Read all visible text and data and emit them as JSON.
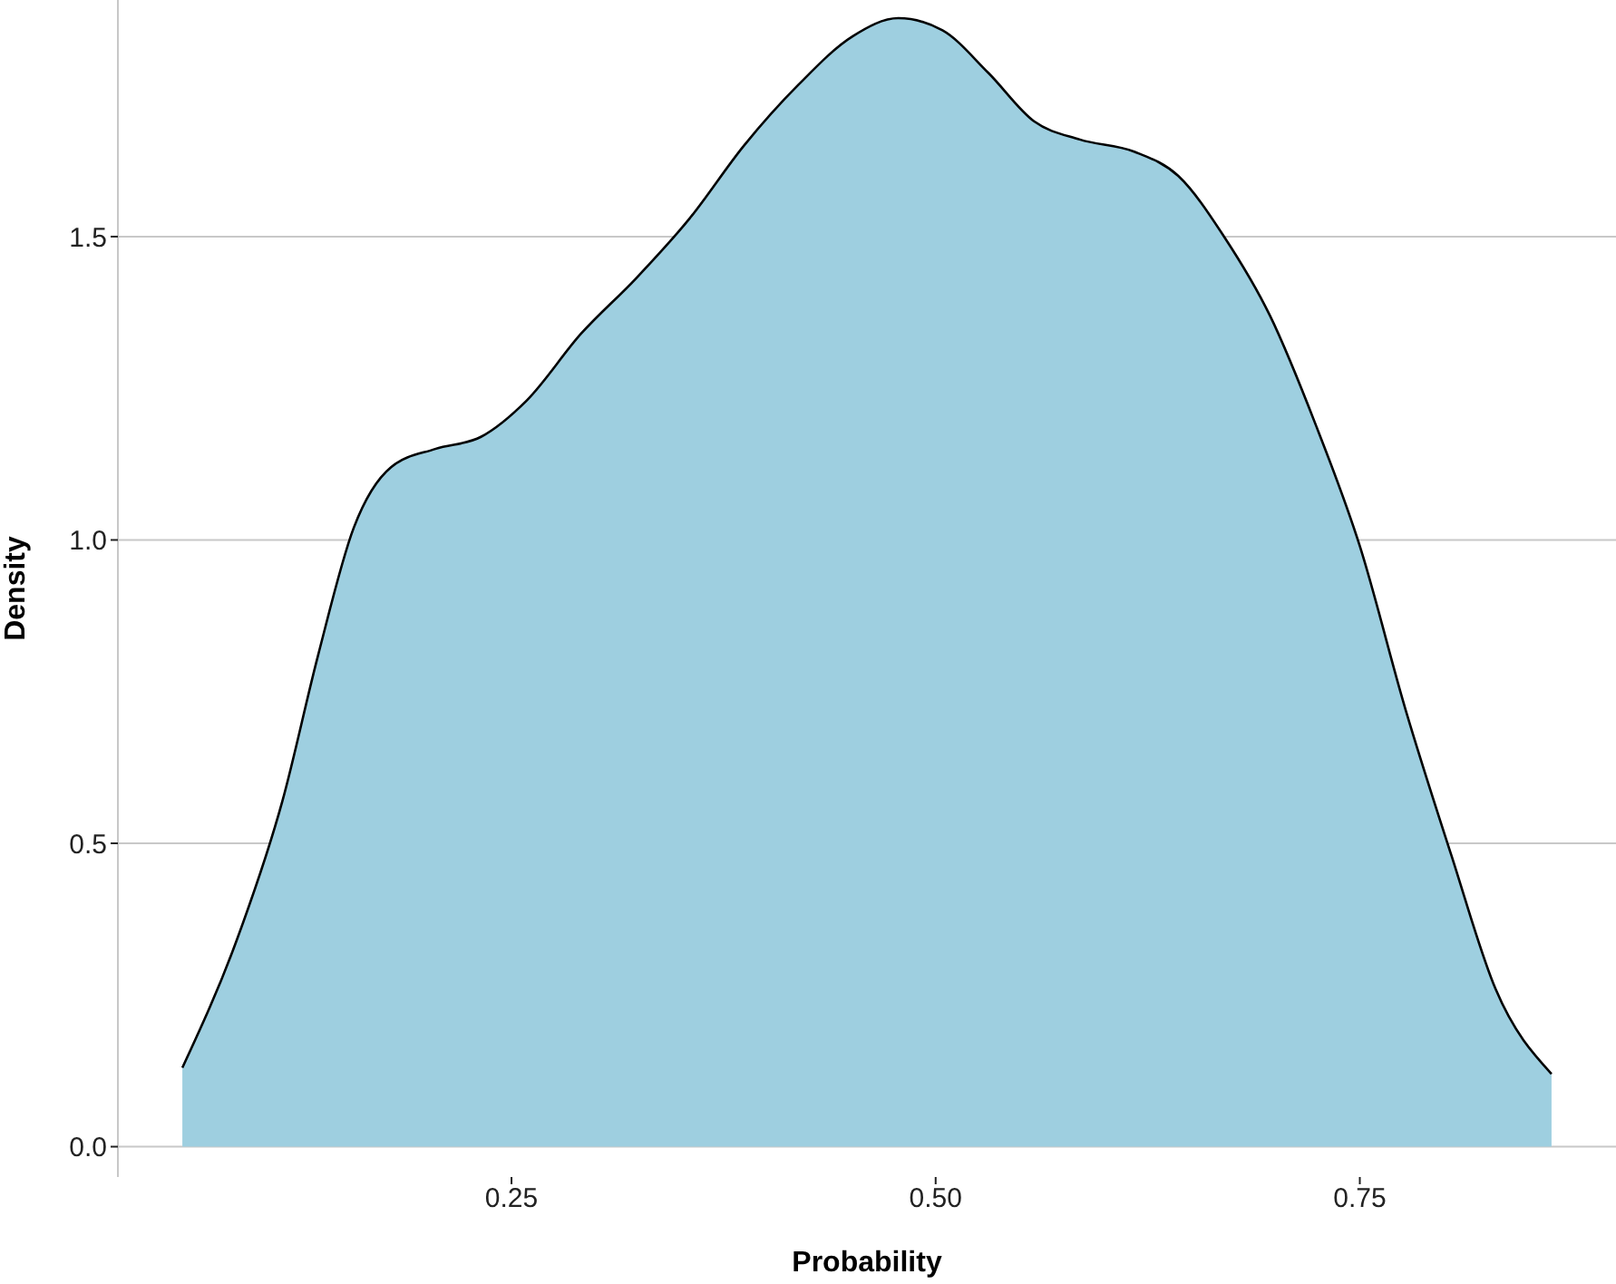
{
  "chart_data": {
    "type": "area",
    "xlabel": "Probability",
    "ylabel": "Density",
    "color": "#9ecfe0",
    "x": [
      0.056,
      0.088,
      0.115,
      0.136,
      0.157,
      0.179,
      0.205,
      0.232,
      0.259,
      0.291,
      0.323,
      0.355,
      0.387,
      0.419,
      0.451,
      0.478,
      0.504,
      0.531,
      0.558,
      0.585,
      0.617,
      0.643,
      0.67,
      0.697,
      0.724,
      0.75,
      0.777,
      0.804,
      0.83,
      0.863
    ],
    "values": [
      0.13,
      0.34,
      0.57,
      0.81,
      1.02,
      1.12,
      1.15,
      1.17,
      1.23,
      1.34,
      1.43,
      1.53,
      1.65,
      1.75,
      1.83,
      1.86,
      1.84,
      1.77,
      1.69,
      1.66,
      1.64,
      1.6,
      1.5,
      1.37,
      1.19,
      0.99,
      0.72,
      0.48,
      0.26,
      0.12
    ],
    "xlim": [
      0.018,
      0.901
    ],
    "xticks": [
      0.25,
      {
        "value": 0.5,
        "label": "0.50"
      },
      0.75
    ],
    "ylim": [
      -0.05,
      1.89
    ],
    "yticks": [
      {
        "value": 0,
        "label": "0.0"
      },
      0.5,
      {
        "value": 1,
        "label": "1.0"
      },
      1.5
    ],
    "grid": "y"
  }
}
